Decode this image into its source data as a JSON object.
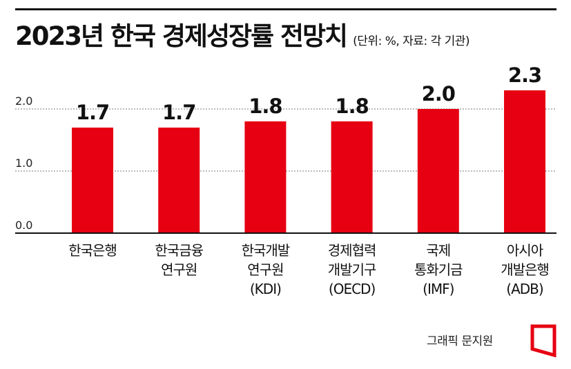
{
  "header": {
    "title": "2023년 한국 경제성장률 전망치",
    "unit_note": "(단위: %, 자료: 각 기관)"
  },
  "credit": "그래픽 문지원",
  "colors": {
    "bar": "#e60012",
    "text": "#111111",
    "grid": "#777777",
    "logo": "#e60012"
  },
  "logo_icon": "red-bracket-logo-icon",
  "chart_data": {
    "type": "bar",
    "title": "2023년 한국 경제성장률 전망치",
    "xlabel": "",
    "ylabel": "",
    "unit": "%",
    "ylim": [
      0,
      2.3
    ],
    "yticks": [
      "0.0",
      "1.0",
      "2.0"
    ],
    "grid": true,
    "categories": [
      [
        "한국은행"
      ],
      [
        "한국금융",
        "연구원"
      ],
      [
        "한국개발",
        "연구원",
        "(KDI)"
      ],
      [
        "경제협력",
        "개발기구",
        "(OECD)"
      ],
      [
        "국제",
        "통화기금",
        "(IMF)"
      ],
      [
        "아시아",
        "개발은행",
        "(ADB)"
      ]
    ],
    "values": [
      1.7,
      1.7,
      1.8,
      1.8,
      2.0,
      2.3
    ],
    "value_labels": [
      "1.7",
      "1.7",
      "1.8",
      "1.8",
      "2.0",
      "2.3"
    ]
  }
}
